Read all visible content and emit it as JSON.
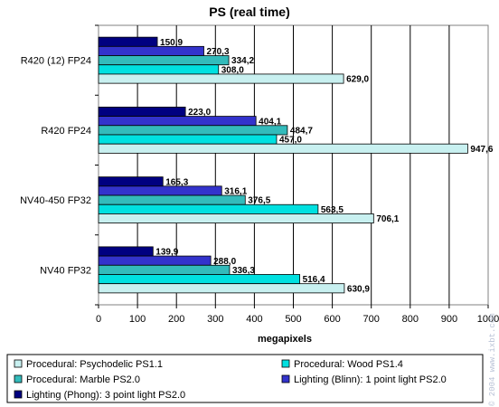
{
  "chart_data": {
    "type": "bar",
    "orientation": "horizontal",
    "title": "PS (real time)",
    "xlabel": "megapixels",
    "ylabel": "",
    "xlim": [
      0,
      1000
    ],
    "ticks": [
      "0",
      "100",
      "200",
      "300",
      "400",
      "500",
      "600",
      "700",
      "800",
      "900",
      "1000"
    ],
    "grid": "vertical",
    "legend_position": "bottom",
    "categories": [
      "R420 (12) FP24",
      "R420 FP24",
      "NV40-450 FP32",
      "NV40 FP32"
    ],
    "series": [
      {
        "name": "Lighting (Phong): 3 point light PS2.0",
        "color": "#000080",
        "values": [
          150.9,
          223.0,
          165.3,
          139.9
        ],
        "labels": [
          "150,9",
          "223,0",
          "165,3",
          "139,9"
        ]
      },
      {
        "name": "Lighting (Blinn): 1 point light PS2.0",
        "color": "#3333cc",
        "values": [
          270.3,
          404.1,
          316.1,
          288.0
        ],
        "labels": [
          "270,3",
          "404,1",
          "316,1",
          "288,0"
        ]
      },
      {
        "name": "Procedural: Marble PS2.0",
        "color": "#33bbbb",
        "values": [
          334.2,
          484.7,
          376.5,
          336.3
        ],
        "labels": [
          "334,2",
          "484,7",
          "376,5",
          "336,3"
        ]
      },
      {
        "name": "Procedural: Wood PS1.4",
        "color": "#00e0e0",
        "values": [
          308.0,
          457.0,
          563.5,
          516.4
        ],
        "labels": [
          "308,0",
          "457,0",
          "563,5",
          "516,4"
        ]
      },
      {
        "name": "Procedural: Psychodelic PS1.1",
        "color": "#c8f0f0",
        "values": [
          629.0,
          947.6,
          706.1,
          630.9
        ],
        "labels": [
          "629,0",
          "947,6",
          "706,1",
          "630,9"
        ]
      }
    ],
    "legend": [
      {
        "label": "Procedural: Psychodelic PS1.1",
        "color": "#c8f0f0"
      },
      {
        "label": "Procedural: Wood PS1.4",
        "color": "#00e0e0"
      },
      {
        "label": "Procedural: Marble PS2.0",
        "color": "#33bbbb"
      },
      {
        "label": "Lighting (Blinn): 1 point light PS2.0",
        "color": "#3333cc"
      },
      {
        "label": "Lighting (Phong): 3 point light PS2.0",
        "color": "#000080"
      }
    ]
  },
  "watermark": "© 2004 www.ixbt.com"
}
